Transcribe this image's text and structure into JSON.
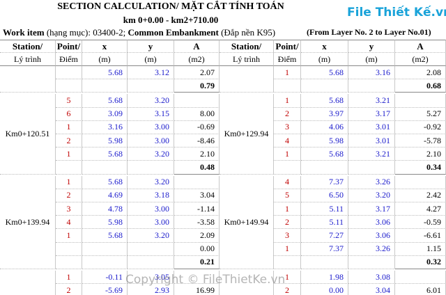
{
  "header": {
    "title": "SECTION CALCULATION/ MẶT CẮT TÍNH TOÁN",
    "range": "km 0+0.00 - km2+710.00",
    "work_label": "Work item",
    "work_label_vn": " (hạng mục): 03400-2; ",
    "work_name": "Common Embankment",
    "work_name_vn": " (Đắp nền K95)",
    "layers": "(From Layer No. 2 to Layer No.01)"
  },
  "logo": "File Thiết Kế.vn",
  "watermark": "Copyright © FileThietKe.vn",
  "columns": [
    [
      "Station/",
      "Lý trình"
    ],
    [
      "Point/",
      "Điểm"
    ],
    [
      "x",
      "(m)"
    ],
    [
      "y",
      "(m)"
    ],
    [
      "A",
      "(m2)"
    ]
  ],
  "blocks": [
    {
      "left": {
        "station": null,
        "rows": [
          [
            null,
            "5.68",
            "3.12",
            "2.07"
          ]
        ],
        "total": "0.79"
      },
      "right": {
        "station": null,
        "rows": [
          [
            "1",
            "5.68",
            "3.16",
            "2.08"
          ]
        ],
        "total": "0.68"
      }
    },
    {
      "left": {
        "station": "Km0+120.51",
        "rows": [
          [
            "5",
            "5.68",
            "3.20",
            null
          ],
          [
            "6",
            "3.09",
            "3.15",
            "8.00"
          ],
          [
            "1",
            "3.16",
            "3.00",
            "-0.69"
          ],
          [
            "2",
            "5.98",
            "3.00",
            "-8.46"
          ],
          [
            "1",
            "5.68",
            "3.20",
            "2.10"
          ]
        ],
        "total": "0.48"
      },
      "right": {
        "station": "Km0+129.94",
        "rows": [
          [
            "1",
            "5.68",
            "3.21",
            null
          ],
          [
            "2",
            "3.97",
            "3.17",
            "5.27"
          ],
          [
            "3",
            "4.06",
            "3.01",
            "-0.92"
          ],
          [
            "4",
            "5.98",
            "3.01",
            "-5.78"
          ],
          [
            "1",
            "5.68",
            "3.21",
            "2.10"
          ]
        ],
        "total": "0.34"
      }
    },
    {
      "left": {
        "station": "Km0+139.94",
        "rows": [
          [
            "1",
            "5.68",
            "3.20",
            null
          ],
          [
            "2",
            "4.69",
            "3.18",
            "3.04"
          ],
          [
            "3",
            "4.78",
            "3.00",
            "-1.14"
          ],
          [
            "4",
            "5.98",
            "3.00",
            "-3.58"
          ],
          [
            "1",
            "5.68",
            "3.20",
            "2.09"
          ],
          [
            null,
            null,
            null,
            "0.00"
          ]
        ],
        "total": "0.21"
      },
      "right": {
        "station": "Km0+149.94",
        "rows": [
          [
            "4",
            "7.37",
            "3.26",
            null
          ],
          [
            "5",
            "6.50",
            "3.20",
            "2.42"
          ],
          [
            "1",
            "5.11",
            "3.17",
            "4.27"
          ],
          [
            "2",
            "5.11",
            "3.06",
            "-0.59"
          ],
          [
            "3",
            "7.27",
            "3.06",
            "-6.61"
          ],
          [
            "1",
            "7.37",
            "3.26",
            "1.15"
          ]
        ],
        "total": "0.32"
      }
    },
    {
      "left": {
        "station": null,
        "rows": [
          [
            "1",
            "-0.11",
            "3.05",
            null
          ],
          [
            "2",
            "-5.69",
            "2.93",
            "16.99"
          ]
        ],
        "total": null
      },
      "right": {
        "station": null,
        "rows": [
          [
            "1",
            "1.98",
            "3.08",
            null
          ],
          [
            "2",
            "0.00",
            "3.04",
            "6.01"
          ]
        ],
        "total": null
      }
    }
  ]
}
